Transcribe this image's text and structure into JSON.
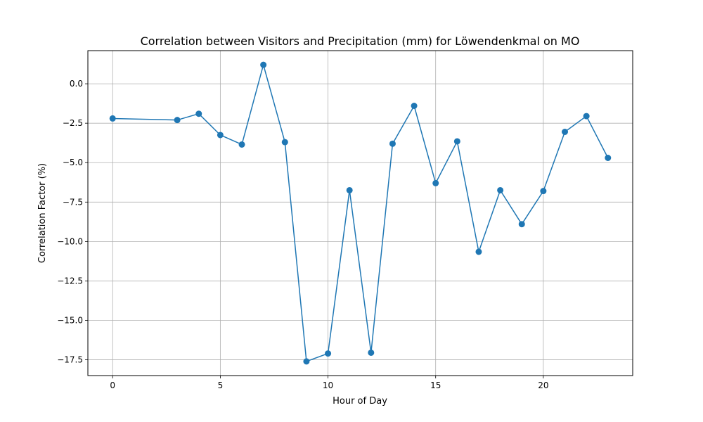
{
  "chart_data": {
    "type": "line",
    "title": "Correlation between Visitors and Precipitation (mm) for Löwendenkmal on MO",
    "xlabel": "Hour of Day",
    "ylabel": "Correlation Factor (%)",
    "xlim": [
      -1.15,
      24.15
    ],
    "ylim": [
      -18.5,
      2.1
    ],
    "x_ticks": [
      0,
      5,
      10,
      15,
      20
    ],
    "y_ticks": [
      0.0,
      -2.5,
      -5.0,
      -7.5,
      -10.0,
      -12.5,
      -15.0,
      -17.5
    ],
    "x_tick_labels": [
      "0",
      "5",
      "10",
      "15",
      "20"
    ],
    "y_tick_labels": [
      "0.0",
      "−2.5",
      "−5.0",
      "−7.5",
      "−10.0",
      "−12.5",
      "−15.0",
      "−17.5"
    ],
    "grid": true,
    "series": [
      {
        "color": "#1f77b4",
        "marker": "circle",
        "x": [
          0,
          3,
          4,
          5,
          6,
          7,
          8,
          9,
          10,
          11,
          12,
          13,
          14,
          15,
          16,
          17,
          18,
          19,
          20,
          21,
          22,
          23
        ],
        "y": [
          -2.2,
          -2.3,
          -1.9,
          -3.25,
          -3.85,
          1.2,
          -3.7,
          -17.6,
          -17.1,
          -6.75,
          -17.05,
          -3.8,
          -1.4,
          -6.3,
          -3.65,
          -10.65,
          -6.75,
          -8.9,
          -6.8,
          -3.05,
          -2.05,
          -4.7
        ]
      }
    ]
  }
}
